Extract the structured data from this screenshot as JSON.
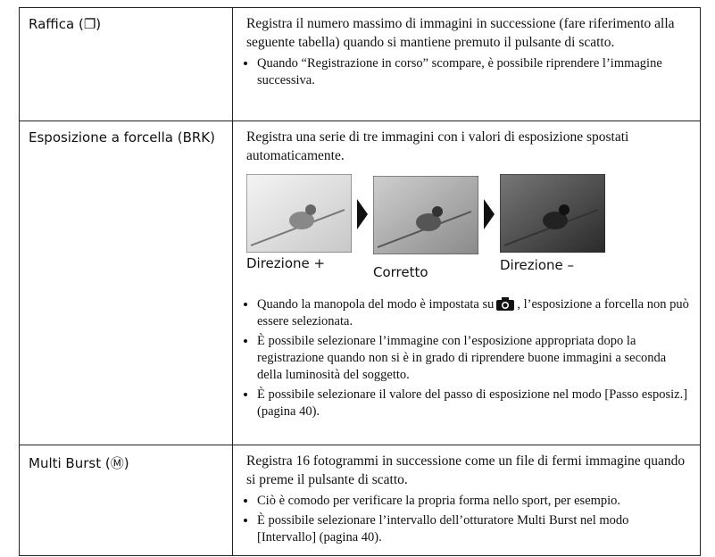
{
  "table": {
    "rows": [
      {
        "label": "Raffica (❐)",
        "description": "Registra il numero massimo di immagini in successione (fare riferimento alla seguente tabella) quando si mantiene premuto il pulsante di scatto.",
        "notes": [
          "Quando “Registrazione in corso” scompare, è possibile riprendere l’immagine successiva."
        ]
      },
      {
        "label": "Esposizione a forcella (BRK)",
        "description": "Registra una serie di tre immagini con i valori di esposizione spostati automaticamente.",
        "images": [
          "Direzione +",
          "Corretto",
          "Direzione –"
        ],
        "icon_note": {
          "before": "Quando la manopola del modo è impostata su",
          "after": ", l’esposizione a forcella non può essere selezionata."
        },
        "notes": [
          "È possibile selezionare l’immagine con l’esposizione appropriata dopo la registrazione quando non si è in grado di riprendere buone immagini a seconda della luminosità del soggetto.",
          "È possibile selezionare il valore del passo di esposizione nel modo [Passo esposiz.] (pagina 40)."
        ]
      },
      {
        "label": "Multi Burst (Ⓜ)",
        "description": "Registra 16 fotogrammi in successione come un file di fermi immagine quando si preme il pulsante di scatto.",
        "notes": [
          "Ciò è comodo per verificare la propria forma nello sport, per esempio.",
          "È possibile selezionare l’intervallo dell’otturatore Multi Burst nel modo [Intervallo] (pagina 40)."
        ]
      }
    ]
  }
}
